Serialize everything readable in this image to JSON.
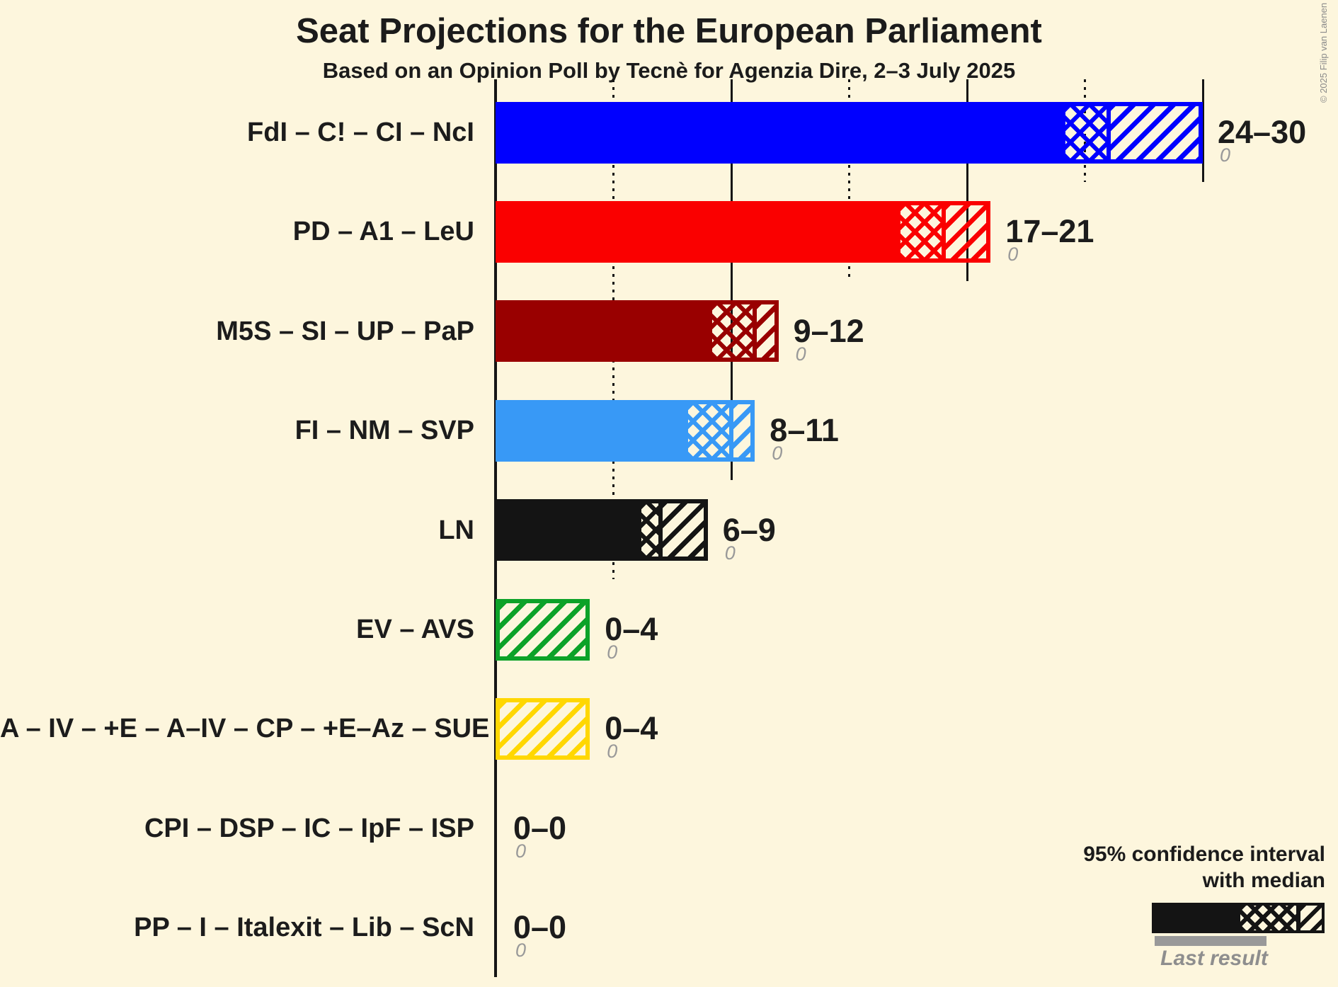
{
  "chart_data": {
    "type": "bar",
    "title": "Seat Projections for the European Parliament",
    "subtitle": "Based on an Opinion Poll by Tecnè for Agenzia Dire, 2–3 July 2025",
    "orientation": "horizontal",
    "x_axis": {
      "min": 0,
      "max": 30,
      "gridline_step": 5,
      "solid_gridlines": [
        0,
        10,
        20,
        30
      ],
      "dotted_gridlines": [
        5,
        15,
        25
      ],
      "tick_labels_shown": false
    },
    "bar_semantics": "solid = up to 95% CI low, crosshatch = CI low to median, diagonal hatch = median to CI high",
    "rows": [
      {
        "label": "FdI – C! – CI – NcI",
        "color": "#0000FF",
        "ci_low": 24,
        "median": 26,
        "ci_high": 30,
        "range_label": "24–30",
        "last_result": 0,
        "last_result_label": "0"
      },
      {
        "label": "PD – A1 – LeU",
        "color": "#FA0000",
        "ci_low": 17,
        "median": 19,
        "ci_high": 21,
        "range_label": "17–21",
        "last_result": 0,
        "last_result_label": "0"
      },
      {
        "label": "M5S – SI – UP – PaP",
        "color": "#990000",
        "ci_low": 9,
        "median": 11,
        "ci_high": 12,
        "range_label": "9–12",
        "last_result": 0,
        "last_result_label": "0"
      },
      {
        "label": "FI – NM – SVP",
        "color": "#3899F6",
        "ci_low": 8,
        "median": 10,
        "ci_high": 11,
        "range_label": "8–11",
        "last_result": 0,
        "last_result_label": "0"
      },
      {
        "label": "LN",
        "color": "#141414",
        "ci_low": 6,
        "median": 7,
        "ci_high": 9,
        "range_label": "6–9",
        "last_result": 0,
        "last_result_label": "0"
      },
      {
        "label": "EV – AVS",
        "color": "#0CA228",
        "ci_low": 0,
        "median": 0,
        "ci_high": 4,
        "range_label": "0–4",
        "last_result": 0,
        "last_result_label": "0"
      },
      {
        "label": "A – IV – +E – A–IV – CP – +E–Az – SUE",
        "color": "#FFD700",
        "ci_low": 0,
        "median": 0,
        "ci_high": 4,
        "range_label": "0–4",
        "last_result": 0,
        "last_result_label": "0"
      },
      {
        "label": "CPI – DSP – IC – IpF – ISP",
        "color": "#999999",
        "ci_low": 0,
        "median": 0,
        "ci_high": 0,
        "range_label": "0–0",
        "last_result": 0,
        "last_result_label": "0"
      },
      {
        "label": "PP – I – Italexit – Lib – ScN",
        "color": "#999999",
        "ci_low": 0,
        "median": 0,
        "ci_high": 0,
        "range_label": "0–0",
        "last_result": 0,
        "last_result_label": "0"
      }
    ],
    "legend": {
      "ci_label_line1": "95% confidence interval",
      "ci_label_line2": "with median",
      "last_result_label": "Last result",
      "legend_bar_color": "#141414",
      "last_result_bar_color": "#999999"
    },
    "colors": {
      "background": "#FDF6DD",
      "text": "#1C1C1C",
      "muted": "#999999"
    },
    "copyright": "© 2025 Filip van Laenen"
  }
}
